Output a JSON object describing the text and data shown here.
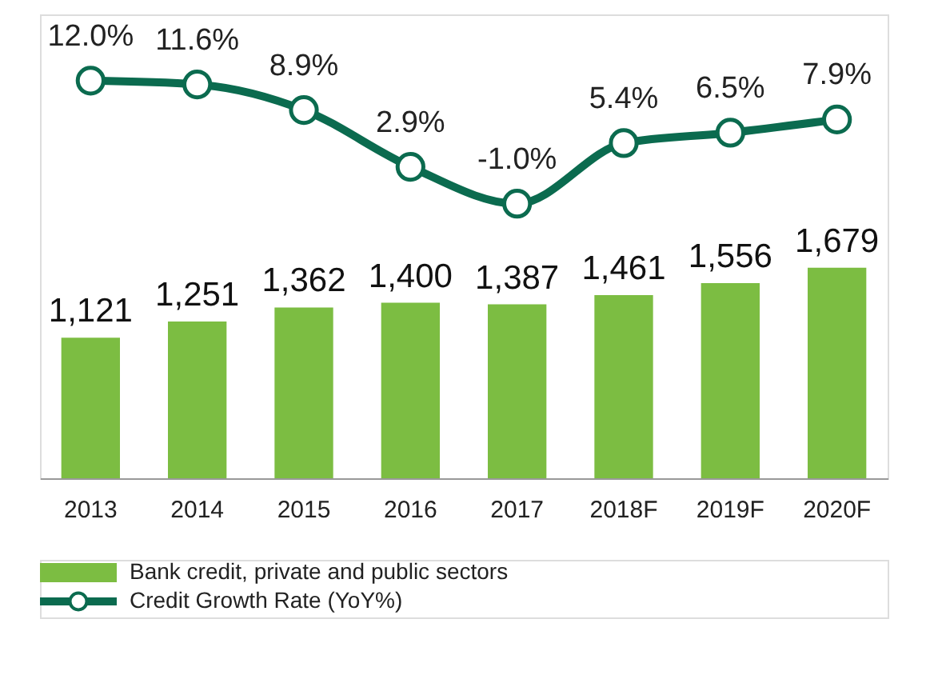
{
  "chart_data": {
    "type": "bar",
    "categories": [
      "2013",
      "2014",
      "2015",
      "2016",
      "2017",
      "2018F",
      "2019F",
      "2020F"
    ],
    "grid": false,
    "legend": "bottom",
    "tick_labels": "x",
    "ylim": [
      0,
      3700
    ],
    "y2lim": [
      -30,
      19
    ],
    "series": [
      {
        "name": "Bank credit, private and public sectors",
        "color": "#7cbd42",
        "values": [
          1121,
          1251,
          1362,
          1400,
          1387,
          1461,
          1556,
          1679
        ],
        "value_labels": [
          "1,121",
          "1,251",
          "1,362",
          "1,400",
          "1,387",
          "1,461",
          "1,556",
          "1,679"
        ]
      },
      {
        "name": "Credit Growth Rate (YoY%)",
        "type": "line",
        "axis": "y2",
        "color": "#0b6b4f",
        "marker": "circle",
        "values": [
          12.0,
          11.6,
          8.9,
          2.9,
          -1.0,
          5.4,
          6.5,
          7.9
        ],
        "value_labels": [
          "12.0%",
          "11.6%",
          "8.9%",
          "2.9%",
          "-1.0%",
          "5.4%",
          "6.5%",
          "7.9%"
        ]
      }
    ]
  }
}
